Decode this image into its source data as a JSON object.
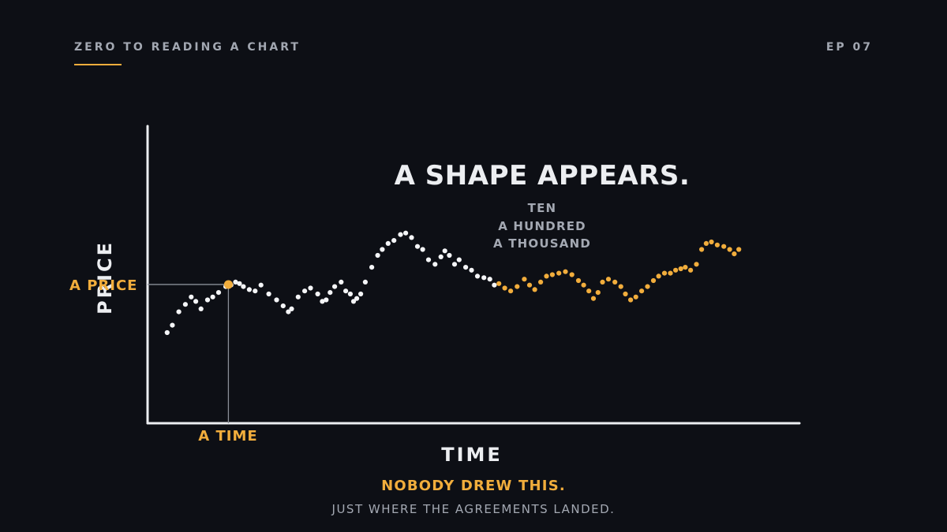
{
  "header": {
    "series_title": "ZERO TO READING A CHART",
    "episode": "EP 07"
  },
  "headline": "A SHAPE APPEARS.",
  "counts": [
    "TEN",
    "A HUNDRED",
    "A THOUSAND"
  ],
  "annotations": {
    "price": "A PRICE",
    "time": "A TIME"
  },
  "footer": {
    "main": "NOBODY DREW THIS.",
    "sub": "JUST WHERE THE AGREEMENTS LANDED."
  },
  "colors": {
    "background": "#0d0f15",
    "accent": "#f1ad3c",
    "primary_points": "#f4f5f7",
    "axis": "#eceef1",
    "guide_lines": "#8a8f99"
  },
  "chart_data": {
    "type": "scatter",
    "title": "",
    "xlabel": "TIME",
    "ylabel": "PRICE",
    "grid": false,
    "legend": "none",
    "x_range": [
      0,
      100
    ],
    "y_range": [
      0,
      100
    ],
    "series": [
      {
        "color": "#f4f5f7",
        "values": [
          [
            3.0,
            30.5
          ],
          [
            3.8,
            33.0
          ],
          [
            4.8,
            37.5
          ],
          [
            5.8,
            40.0
          ],
          [
            6.7,
            42.5
          ],
          [
            7.4,
            41.0
          ],
          [
            8.2,
            38.5
          ],
          [
            9.2,
            41.5
          ],
          [
            10.0,
            42.5
          ],
          [
            10.9,
            44.0
          ],
          [
            12.0,
            46.0
          ],
          [
            12.8,
            46.5
          ],
          [
            13.5,
            47.5
          ],
          [
            14.1,
            47.0
          ],
          [
            14.7,
            46.0
          ],
          [
            15.6,
            45.0
          ],
          [
            16.5,
            44.5
          ],
          [
            17.4,
            46.5
          ],
          [
            18.6,
            43.5
          ],
          [
            19.8,
            41.5
          ],
          [
            20.8,
            39.5
          ],
          [
            21.6,
            37.5
          ],
          [
            22.1,
            38.5
          ],
          [
            23.1,
            42.5
          ],
          [
            24.1,
            44.5
          ],
          [
            25.0,
            45.5
          ],
          [
            26.1,
            43.5
          ],
          [
            26.8,
            41.0
          ],
          [
            27.4,
            41.5
          ],
          [
            28.0,
            44.0
          ],
          [
            28.7,
            46.0
          ],
          [
            29.7,
            47.5
          ],
          [
            30.4,
            44.5
          ],
          [
            31.1,
            43.5
          ],
          [
            31.6,
            41.0
          ],
          [
            32.1,
            42.0
          ],
          [
            32.7,
            43.5
          ],
          [
            33.4,
            47.5
          ],
          [
            34.4,
            52.5
          ],
          [
            35.3,
            56.5
          ],
          [
            36.0,
            58.5
          ],
          [
            36.9,
            60.5
          ],
          [
            37.8,
            61.5
          ],
          [
            38.8,
            63.5
          ],
          [
            39.6,
            64.0
          ],
          [
            40.5,
            62.5
          ],
          [
            41.4,
            59.5
          ],
          [
            42.2,
            58.5
          ],
          [
            43.1,
            55.0
          ],
          [
            44.1,
            53.5
          ],
          [
            45.0,
            56.0
          ],
          [
            45.6,
            58.0
          ],
          [
            46.3,
            56.5
          ],
          [
            47.1,
            53.5
          ],
          [
            47.8,
            55.0
          ],
          [
            48.8,
            52.5
          ],
          [
            49.7,
            51.5
          ],
          [
            50.6,
            49.5
          ],
          [
            51.6,
            49.0
          ],
          [
            52.5,
            48.5
          ],
          [
            53.2,
            46.5
          ]
        ]
      },
      {
        "color": "#f1ad3c",
        "values": [
          [
            53.9,
            47.0
          ],
          [
            54.8,
            45.5
          ],
          [
            55.7,
            44.5
          ],
          [
            56.7,
            46.0
          ],
          [
            57.8,
            48.5
          ],
          [
            58.6,
            46.5
          ],
          [
            59.4,
            45.0
          ],
          [
            60.3,
            47.5
          ],
          [
            61.2,
            49.5
          ],
          [
            62.1,
            50.0
          ],
          [
            63.1,
            50.5
          ],
          [
            64.1,
            51.0
          ],
          [
            65.1,
            50.0
          ],
          [
            66.1,
            48.0
          ],
          [
            66.9,
            46.5
          ],
          [
            67.7,
            44.5
          ],
          [
            68.4,
            42.0
          ],
          [
            69.1,
            44.0
          ],
          [
            69.8,
            47.5
          ],
          [
            70.7,
            48.5
          ],
          [
            71.7,
            47.5
          ],
          [
            72.6,
            46.0
          ],
          [
            73.3,
            43.5
          ],
          [
            74.1,
            41.5
          ],
          [
            74.9,
            42.5
          ],
          [
            75.8,
            44.5
          ],
          [
            76.7,
            46.0
          ],
          [
            77.6,
            48.0
          ],
          [
            78.4,
            49.5
          ],
          [
            79.3,
            50.5
          ],
          [
            80.2,
            50.5
          ],
          [
            81.0,
            51.5
          ],
          [
            81.8,
            52.0
          ],
          [
            82.5,
            52.5
          ],
          [
            83.3,
            51.5
          ],
          [
            84.2,
            53.5
          ],
          [
            85.0,
            58.5
          ],
          [
            85.7,
            60.5
          ],
          [
            86.5,
            61.0
          ],
          [
            87.4,
            60.0
          ],
          [
            88.4,
            59.5
          ],
          [
            89.3,
            58.5
          ],
          [
            90.0,
            57.0
          ],
          [
            90.7,
            58.5
          ]
        ]
      }
    ],
    "highlight_point": {
      "x": 12.4,
      "y": 46.7
    }
  }
}
